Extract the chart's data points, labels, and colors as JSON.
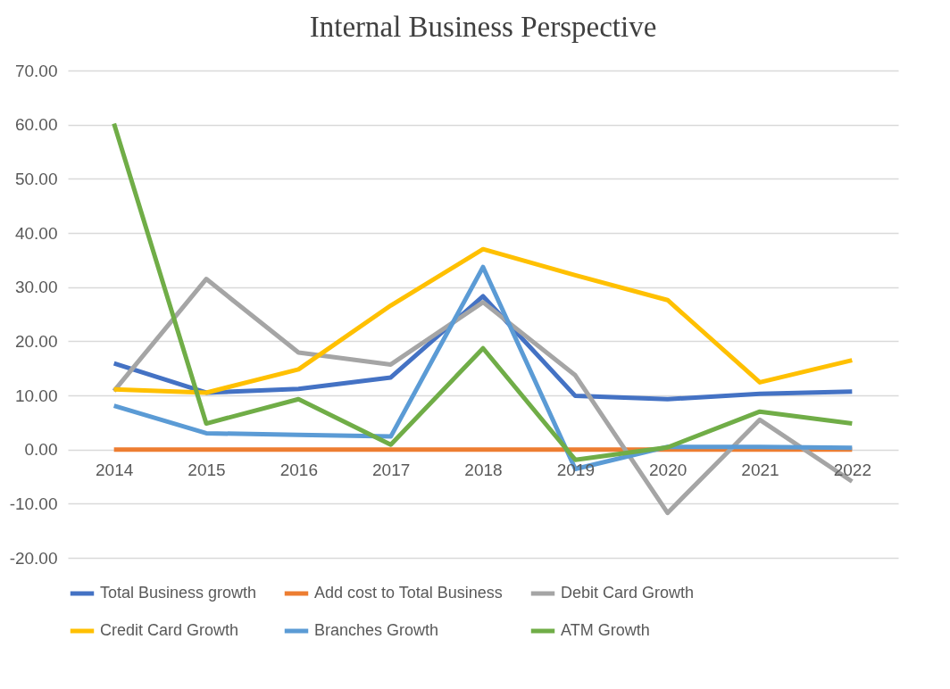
{
  "chart_data": {
    "type": "line",
    "title": "Internal Business Perspective",
    "categories": [
      "2014",
      "2015",
      "2016",
      "2017",
      "2018",
      "2019",
      "2020",
      "2021",
      "2022"
    ],
    "series": [
      {
        "name": "Total Business growth",
        "color": "#4472c4",
        "values": [
          15.9,
          10.5,
          11.2,
          13.3,
          28.3,
          9.9,
          9.3,
          10.3,
          10.7
        ]
      },
      {
        "name": "Add cost to Total Business",
        "color": "#ed7d31",
        "values": [
          0,
          0,
          0,
          0,
          0,
          0,
          0,
          0,
          0
        ]
      },
      {
        "name": "Debit Card Growth",
        "color": "#a5a5a5",
        "values": [
          10.8,
          31.5,
          17.9,
          15.7,
          27.2,
          13.7,
          -11.7,
          5.5,
          -5.9
        ]
      },
      {
        "name": "Credit Card Growth",
        "color": "#ffc000",
        "values": [
          11.1,
          10.5,
          14.8,
          26.6,
          37.0,
          32.2,
          27.6,
          12.4,
          16.5
        ]
      },
      {
        "name": "Branches Growth",
        "color": "#5b9bd5",
        "values": [
          8.1,
          3.0,
          2.7,
          2.4,
          33.7,
          -3.6,
          0.5,
          0.5,
          0.3
        ]
      },
      {
        "name": "ATM Growth",
        "color": "#70ad47",
        "values": [
          60.2,
          4.8,
          9.3,
          0.9,
          18.7,
          -1.9,
          0.4,
          7.0,
          4.8
        ]
      }
    ],
    "ylim": [
      -20,
      70
    ],
    "yticks": [
      {
        "value": -20,
        "label": "-20.00"
      },
      {
        "value": -10,
        "label": "-10.00"
      },
      {
        "value": 0,
        "label": "0.00"
      },
      {
        "value": 10,
        "label": "10.00"
      },
      {
        "value": 20,
        "label": "20.00"
      },
      {
        "value": 30,
        "label": "30.00"
      },
      {
        "value": 40,
        "label": "40.00"
      },
      {
        "value": 50,
        "label": "50.00"
      },
      {
        "value": 60,
        "label": "60.00"
      },
      {
        "value": 70,
        "label": "70.00"
      }
    ],
    "grid": "y",
    "legend": "bottom",
    "marker": "none",
    "line_style": "solid"
  }
}
